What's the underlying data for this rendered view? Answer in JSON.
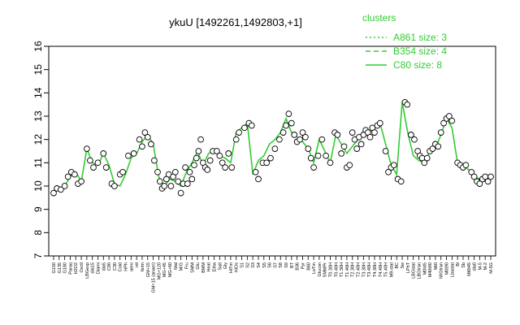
{
  "chart_data": {
    "type": "line",
    "title": "ykuU [1492261,1492803,+1]",
    "xlabel": "",
    "ylabel": "",
    "ylim": [
      7,
      16
    ],
    "y_ticks": [
      7,
      8,
      9,
      10,
      11,
      12,
      13,
      14,
      15,
      16
    ],
    "grid": false,
    "legend": {
      "title": "clusters",
      "placement": "top-right",
      "entries": [
        {
          "label": "A861 size: 3",
          "style": "dotted"
        },
        {
          "label": "B354 size: 4",
          "style": "dashed"
        },
        {
          "label": "C80 size: 8",
          "style": "solid"
        }
      ]
    },
    "colors": {
      "line": "#33cc33",
      "points": "#000000",
      "point_fill": "#ffffff"
    },
    "x_tick_labels": [
      "G150",
      "G135",
      "G180",
      "Paraq",
      "H2O2",
      "Oxctl",
      "LBGexp",
      "dia15",
      "Diami",
      "dia5",
      "C90",
      "C30",
      "Cold",
      "HPh",
      "aero",
      "nit",
      "ferm",
      "GM+15",
      "GM+15 (anaer)",
      "MG+120",
      "MG+45",
      "MG+60",
      "Mal",
      "M/G",
      "Fru",
      "SMM",
      "Glu",
      "BMM",
      "Heat",
      "Etha",
      "Salt",
      "Gly",
      "HiTm",
      "HiOs",
      "S1",
      "S2",
      "S3",
      "S4",
      "S5",
      "S6",
      "S7",
      "S8",
      "S9",
      "BT",
      "B36",
      "Pyr",
      "B60",
      "LoTm",
      "Glucon",
      "SMMPr",
      "T0.30H",
      "T0.40H",
      "T1.30H",
      "T1.40H",
      "T2.30H",
      "T2.40H",
      "T3.30H",
      "T3.40H",
      "T4.30H",
      "T4.40H",
      "T5.40H",
      "M9-stat",
      "BC",
      "Sw",
      "LPhT",
      "LBGstat",
      "LBGtran",
      "M0t45",
      "M40t90",
      "Mt0",
      "M/Gtran",
      "M0t90",
      "Lbastat",
      "Bl",
      "Sb",
      "Mt0t45",
      "dia0",
      "M-5",
      "M-2",
      "M-5G"
    ],
    "x": [
      1,
      2,
      3,
      4,
      5,
      6,
      7,
      8,
      9,
      10,
      11,
      12,
      13,
      14,
      15,
      16,
      17,
      18,
      19,
      20,
      21,
      22,
      23,
      24,
      25,
      26,
      27,
      28,
      29,
      30,
      31,
      32,
      33,
      34,
      35,
      36,
      37,
      38,
      39,
      40,
      41,
      42,
      43,
      44,
      45,
      46,
      47,
      48,
      49,
      50,
      51,
      52,
      53,
      54,
      55,
      56,
      57,
      58,
      59,
      60,
      61,
      62,
      63,
      64,
      65,
      66,
      67,
      68,
      69,
      70,
      71,
      72,
      73,
      74,
      75,
      76,
      77,
      78,
      79,
      80
    ],
    "series": [
      {
        "values": [
          9.8,
          9.9,
          10.0,
          10.4,
          10.6,
          10.2,
          11.6,
          11.0,
          10.9,
          11.4,
          10.9,
          10.1,
          10.0,
          10.5,
          11.2,
          11.4,
          11.9,
          12.2,
          11.8,
          10.4,
          10.0,
          10.3,
          10.2,
          10.0,
          10.6,
          11.0,
          11.5,
          10.9,
          11.4,
          11.5,
          11.3,
          11.2,
          11.0,
          12.3,
          12.5,
          12.7,
          10.5,
          11.1,
          11.3,
          11.8,
          12.0,
          12.3,
          12.9,
          12.3,
          12.1,
          11.9,
          11.6,
          11.0,
          12.0,
          11.5,
          11.0,
          12.2,
          11.8,
          11.4,
          11.7,
          12.0,
          12.2,
          12.3,
          12.5,
          12.7,
          11.8,
          10.9,
          10.5,
          13.6,
          12.3,
          11.3,
          11.1,
          11.0,
          11.5,
          11.6,
          12.2,
          12.9,
          12.5,
          11.0,
          10.9,
          10.7,
          10.4,
          10.3,
          10.2,
          10.1
        ]
      }
    ],
    "points": [
      {
        "x": 1,
        "y": 9.7
      },
      {
        "x": 1.6,
        "y": 9.9
      },
      {
        "x": 2.3,
        "y": 9.85
      },
      {
        "x": 3,
        "y": 10.0
      },
      {
        "x": 3.6,
        "y": 10.4
      },
      {
        "x": 4.2,
        "y": 10.6
      },
      {
        "x": 4.8,
        "y": 10.5
      },
      {
        "x": 5.4,
        "y": 10.1
      },
      {
        "x": 6,
        "y": 10.2
      },
      {
        "x": 7,
        "y": 11.6
      },
      {
        "x": 7.6,
        "y": 11.1
      },
      {
        "x": 8.2,
        "y": 10.8
      },
      {
        "x": 9,
        "y": 11.0
      },
      {
        "x": 10,
        "y": 11.4
      },
      {
        "x": 10.5,
        "y": 10.8
      },
      {
        "x": 11.5,
        "y": 10.1
      },
      {
        "x": 12,
        "y": 10.0
      },
      {
        "x": 13,
        "y": 10.5
      },
      {
        "x": 13.5,
        "y": 10.6
      },
      {
        "x": 14.5,
        "y": 11.3
      },
      {
        "x": 15.5,
        "y": 11.4
      },
      {
        "x": 16.5,
        "y": 12.0
      },
      {
        "x": 17,
        "y": 11.7
      },
      {
        "x": 17.5,
        "y": 12.3
      },
      {
        "x": 18,
        "y": 12.1
      },
      {
        "x": 18.6,
        "y": 11.8
      },
      {
        "x": 19.2,
        "y": 11.1
      },
      {
        "x": 19.8,
        "y": 10.6
      },
      {
        "x": 20.2,
        "y": 10.2
      },
      {
        "x": 20.6,
        "y": 9.9
      },
      {
        "x": 21,
        "y": 10.0
      },
      {
        "x": 21.4,
        "y": 10.3
      },
      {
        "x": 21.8,
        "y": 10.5
      },
      {
        "x": 22.2,
        "y": 10.0
      },
      {
        "x": 22.6,
        "y": 10.4
      },
      {
        "x": 23,
        "y": 10.6
      },
      {
        "x": 23.5,
        "y": 10.2
      },
      {
        "x": 24,
        "y": 9.7
      },
      {
        "x": 24.4,
        "y": 10.1
      },
      {
        "x": 24.8,
        "y": 10.8
      },
      {
        "x": 25.2,
        "y": 10.1
      },
      {
        "x": 25.6,
        "y": 10.6
      },
      {
        "x": 26,
        "y": 10.3
      },
      {
        "x": 26.4,
        "y": 10.9
      },
      {
        "x": 26.8,
        "y": 11.2
      },
      {
        "x": 27.2,
        "y": 11.5
      },
      {
        "x": 27.6,
        "y": 12.0
      },
      {
        "x": 28,
        "y": 11.0
      },
      {
        "x": 28.4,
        "y": 10.8
      },
      {
        "x": 28.8,
        "y": 10.7
      },
      {
        "x": 29.3,
        "y": 11.1
      },
      {
        "x": 29.8,
        "y": 11.5
      },
      {
        "x": 30.5,
        "y": 11.5
      },
      {
        "x": 31,
        "y": 11.3
      },
      {
        "x": 31.5,
        "y": 11.0
      },
      {
        "x": 32,
        "y": 10.8
      },
      {
        "x": 32.6,
        "y": 11.4
      },
      {
        "x": 33.2,
        "y": 10.8
      },
      {
        "x": 34,
        "y": 12.0
      },
      {
        "x": 34.5,
        "y": 12.3
      },
      {
        "x": 35.5,
        "y": 12.5
      },
      {
        "x": 36.3,
        "y": 12.7
      },
      {
        "x": 36.8,
        "y": 12.6
      },
      {
        "x": 37.5,
        "y": 10.6
      },
      {
        "x": 38,
        "y": 10.3
      },
      {
        "x": 38.8,
        "y": 11.0
      },
      {
        "x": 39.5,
        "y": 11.0
      },
      {
        "x": 40.2,
        "y": 11.2
      },
      {
        "x": 41,
        "y": 11.6
      },
      {
        "x": 41.8,
        "y": 12.0
      },
      {
        "x": 42.5,
        "y": 12.3
      },
      {
        "x": 43,
        "y": 12.6
      },
      {
        "x": 43.5,
        "y": 13.1
      },
      {
        "x": 44,
        "y": 12.7
      },
      {
        "x": 44.5,
        "y": 12.2
      },
      {
        "x": 45,
        "y": 11.9
      },
      {
        "x": 45.5,
        "y": 12.0
      },
      {
        "x": 46,
        "y": 12.3
      },
      {
        "x": 46.5,
        "y": 12.1
      },
      {
        "x": 47,
        "y": 11.6
      },
      {
        "x": 47.5,
        "y": 11.2
      },
      {
        "x": 48,
        "y": 10.8
      },
      {
        "x": 48.8,
        "y": 11.3
      },
      {
        "x": 49.5,
        "y": 12.0
      },
      {
        "x": 50.2,
        "y": 11.3
      },
      {
        "x": 51,
        "y": 11.0
      },
      {
        "x": 51.8,
        "y": 12.3
      },
      {
        "x": 52.3,
        "y": 12.2
      },
      {
        "x": 53,
        "y": 11.4
      },
      {
        "x": 53.5,
        "y": 11.7
      },
      {
        "x": 54,
        "y": 10.8
      },
      {
        "x": 54.5,
        "y": 10.9
      },
      {
        "x": 55,
        "y": 12.3
      },
      {
        "x": 55.4,
        "y": 12.0
      },
      {
        "x": 55.8,
        "y": 11.6
      },
      {
        "x": 56.2,
        "y": 12.1
      },
      {
        "x": 56.6,
        "y": 11.8
      },
      {
        "x": 57,
        "y": 12.2
      },
      {
        "x": 57.4,
        "y": 12.4
      },
      {
        "x": 57.8,
        "y": 12.3
      },
      {
        "x": 58.2,
        "y": 12.1
      },
      {
        "x": 58.6,
        "y": 12.5
      },
      {
        "x": 59,
        "y": 12.3
      },
      {
        "x": 59.5,
        "y": 12.6
      },
      {
        "x": 60,
        "y": 12.7
      },
      {
        "x": 61,
        "y": 11.5
      },
      {
        "x": 61.5,
        "y": 10.6
      },
      {
        "x": 62,
        "y": 10.8
      },
      {
        "x": 62.5,
        "y": 10.9
      },
      {
        "x": 63.2,
        "y": 10.3
      },
      {
        "x": 63.8,
        "y": 10.2
      },
      {
        "x": 64.5,
        "y": 13.6
      },
      {
        "x": 64.9,
        "y": 13.5
      },
      {
        "x": 65.6,
        "y": 12.2
      },
      {
        "x": 66.2,
        "y": 12.0
      },
      {
        "x": 66.8,
        "y": 11.5
      },
      {
        "x": 67.2,
        "y": 11.3
      },
      {
        "x": 67.6,
        "y": 11.2
      },
      {
        "x": 68,
        "y": 11.0
      },
      {
        "x": 68.5,
        "y": 11.2
      },
      {
        "x": 69,
        "y": 11.5
      },
      {
        "x": 69.5,
        "y": 11.6
      },
      {
        "x": 70,
        "y": 11.8
      },
      {
        "x": 70.5,
        "y": 11.7
      },
      {
        "x": 71,
        "y": 12.3
      },
      {
        "x": 71.5,
        "y": 12.7
      },
      {
        "x": 72,
        "y": 12.9
      },
      {
        "x": 72.5,
        "y": 13.0
      },
      {
        "x": 73,
        "y": 12.8
      },
      {
        "x": 74,
        "y": 11.0
      },
      {
        "x": 74.5,
        "y": 10.9
      },
      {
        "x": 75,
        "y": 10.8
      },
      {
        "x": 75.5,
        "y": 10.9
      },
      {
        "x": 76.5,
        "y": 10.6
      },
      {
        "x": 77,
        "y": 10.4
      },
      {
        "x": 77.5,
        "y": 10.2
      },
      {
        "x": 78,
        "y": 10.1
      },
      {
        "x": 78.5,
        "y": 10.3
      },
      {
        "x": 79,
        "y": 10.4
      },
      {
        "x": 79.5,
        "y": 10.2
      },
      {
        "x": 80,
        "y": 10.4
      }
    ]
  }
}
